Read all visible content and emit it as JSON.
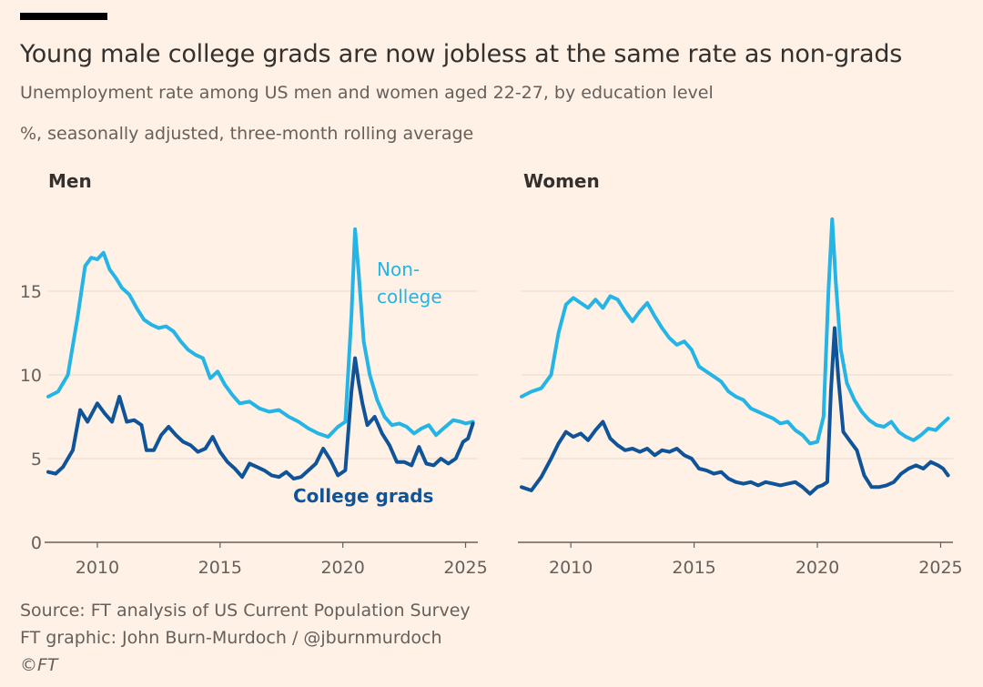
{
  "header": {
    "title": "Young male college grads are now jobless at the same rate as non-grads",
    "subtitle": "Unemployment rate among US men and women aged 22-27, by education level",
    "units": "%, seasonally adjusted, three-month rolling average"
  },
  "footer": {
    "source": "Source: FT analysis of US Current Population Survey",
    "credit": "FT graphic: John Burn-Murdoch / @jburnmurdoch",
    "copyright": "©FT"
  },
  "colors": {
    "background": "#fff1e5",
    "noncollege": "#25b4e6",
    "college": "#0f5499",
    "grid": "#e6d9ce",
    "axis": "#66605c",
    "text": "#33302e"
  },
  "chart_data": [
    {
      "type": "line",
      "title": "Men",
      "xlim": [
        2008,
        2025.5
      ],
      "ylim": [
        0,
        20
      ],
      "yticks": [
        0,
        5,
        10,
        15
      ],
      "xticks": [
        2010,
        2015,
        2020,
        2025
      ],
      "grid": true,
      "series": [
        {
          "name": "Non-college",
          "label_lines": [
            "Non-",
            "college"
          ],
          "color": "#25b4e6",
          "x": [
            2008.0,
            2008.4,
            2008.8,
            2009.2,
            2009.5,
            2009.75,
            2010.0,
            2010.25,
            2010.5,
            2010.75,
            2011.0,
            2011.3,
            2011.6,
            2011.9,
            2012.2,
            2012.5,
            2012.8,
            2013.1,
            2013.4,
            2013.7,
            2014.0,
            2014.3,
            2014.6,
            2014.9,
            2015.2,
            2015.5,
            2015.8,
            2016.2,
            2016.6,
            2017.0,
            2017.4,
            2017.8,
            2018.2,
            2018.6,
            2019.0,
            2019.4,
            2019.8,
            2020.1,
            2020.35,
            2020.5,
            2020.65,
            2020.85,
            2021.1,
            2021.4,
            2021.7,
            2022.0,
            2022.3,
            2022.6,
            2022.9,
            2023.2,
            2023.5,
            2023.8,
            2024.1,
            2024.5,
            2024.8,
            2025.0,
            2025.3
          ],
          "values": [
            8.7,
            9.0,
            10.0,
            13.5,
            16.5,
            17.0,
            16.9,
            17.3,
            16.3,
            15.8,
            15.2,
            14.8,
            14.0,
            13.3,
            13.0,
            12.8,
            12.9,
            12.6,
            12.0,
            11.5,
            11.2,
            11.0,
            9.8,
            10.2,
            9.4,
            8.8,
            8.3,
            8.4,
            8.0,
            7.8,
            7.9,
            7.5,
            7.2,
            6.8,
            6.5,
            6.3,
            6.9,
            7.2,
            13.5,
            18.7,
            16.0,
            12.0,
            10.0,
            8.5,
            7.5,
            7.0,
            7.1,
            6.9,
            6.5,
            6.8,
            7.0,
            6.4,
            6.8,
            7.3,
            7.2,
            7.1,
            7.2
          ]
        },
        {
          "name": "College grads",
          "color": "#0f5499",
          "x": [
            2008.0,
            2008.3,
            2008.6,
            2009.0,
            2009.3,
            2009.6,
            2010.0,
            2010.3,
            2010.6,
            2010.9,
            2011.2,
            2011.5,
            2011.8,
            2012.0,
            2012.3,
            2012.6,
            2012.9,
            2013.2,
            2013.5,
            2013.8,
            2014.1,
            2014.4,
            2014.7,
            2015.0,
            2015.3,
            2015.6,
            2015.9,
            2016.2,
            2016.5,
            2016.8,
            2017.1,
            2017.4,
            2017.7,
            2018.0,
            2018.3,
            2018.6,
            2018.9,
            2019.2,
            2019.5,
            2019.8,
            2020.1,
            2020.35,
            2020.5,
            2020.65,
            2020.8,
            2021.0,
            2021.3,
            2021.6,
            2021.9,
            2022.2,
            2022.5,
            2022.8,
            2023.1,
            2023.4,
            2023.7,
            2024.0,
            2024.3,
            2024.6,
            2024.9,
            2025.1,
            2025.3
          ],
          "values": [
            4.2,
            4.1,
            4.5,
            5.5,
            7.9,
            7.2,
            8.3,
            7.7,
            7.2,
            8.7,
            7.2,
            7.3,
            7.0,
            5.5,
            5.5,
            6.4,
            6.9,
            6.4,
            6.0,
            5.8,
            5.4,
            5.6,
            6.3,
            5.4,
            4.8,
            4.4,
            3.9,
            4.7,
            4.5,
            4.3,
            4.0,
            3.9,
            4.2,
            3.8,
            3.9,
            4.3,
            4.7,
            5.6,
            4.9,
            4.0,
            4.3,
            9.0,
            11.0,
            9.5,
            8.3,
            7.0,
            7.5,
            6.5,
            5.8,
            4.8,
            4.8,
            4.6,
            5.7,
            4.7,
            4.6,
            5.0,
            4.7,
            5.0,
            6.0,
            6.2,
            7.1
          ]
        }
      ]
    },
    {
      "type": "line",
      "title": "Women",
      "xlim": [
        2008,
        2025.5
      ],
      "ylim": [
        0,
        20
      ],
      "yticks": [
        0,
        5,
        10,
        15
      ],
      "xticks": [
        2010,
        2015,
        2020,
        2025
      ],
      "grid": true,
      "series": [
        {
          "name": "Non-college",
          "color": "#25b4e6",
          "x": [
            2008.0,
            2008.4,
            2008.8,
            2009.2,
            2009.5,
            2009.8,
            2010.1,
            2010.4,
            2010.7,
            2011.0,
            2011.3,
            2011.6,
            2011.9,
            2012.2,
            2012.5,
            2012.8,
            2013.1,
            2013.4,
            2013.7,
            2014.0,
            2014.3,
            2014.6,
            2014.9,
            2015.2,
            2015.5,
            2015.8,
            2016.1,
            2016.4,
            2016.7,
            2017.0,
            2017.3,
            2017.6,
            2017.9,
            2018.2,
            2018.5,
            2018.8,
            2019.1,
            2019.4,
            2019.7,
            2020.0,
            2020.25,
            2020.45,
            2020.6,
            2020.75,
            2020.95,
            2021.2,
            2021.5,
            2021.8,
            2022.1,
            2022.4,
            2022.7,
            2023.0,
            2023.3,
            2023.6,
            2023.9,
            2024.2,
            2024.5,
            2024.8,
            2025.0,
            2025.3
          ],
          "values": [
            8.7,
            9.0,
            9.2,
            10.0,
            12.5,
            14.2,
            14.6,
            14.3,
            14.0,
            14.5,
            14.0,
            14.7,
            14.5,
            13.8,
            13.2,
            13.8,
            14.3,
            13.5,
            12.8,
            12.2,
            11.8,
            12.0,
            11.5,
            10.5,
            10.2,
            9.9,
            9.6,
            9.0,
            8.7,
            8.5,
            8.0,
            7.8,
            7.6,
            7.4,
            7.1,
            7.2,
            6.7,
            6.4,
            5.9,
            6.0,
            7.5,
            15.0,
            19.3,
            15.5,
            11.5,
            9.5,
            8.5,
            7.8,
            7.3,
            7.0,
            6.9,
            7.2,
            6.6,
            6.3,
            6.1,
            6.4,
            6.8,
            6.7,
            7.0,
            7.4
          ]
        },
        {
          "name": "College grads",
          "color": "#0f5499",
          "x": [
            2008.0,
            2008.4,
            2008.8,
            2009.2,
            2009.5,
            2009.8,
            2010.1,
            2010.4,
            2010.7,
            2011.0,
            2011.3,
            2011.6,
            2011.9,
            2012.2,
            2012.5,
            2012.8,
            2013.1,
            2013.4,
            2013.7,
            2014.0,
            2014.3,
            2014.6,
            2014.9,
            2015.2,
            2015.5,
            2015.8,
            2016.1,
            2016.4,
            2016.7,
            2017.0,
            2017.3,
            2017.6,
            2017.9,
            2018.2,
            2018.5,
            2018.8,
            2019.1,
            2019.4,
            2019.7,
            2020.0,
            2020.2,
            2020.4,
            2020.55,
            2020.7,
            2020.85,
            2021.05,
            2021.3,
            2021.6,
            2021.9,
            2022.2,
            2022.5,
            2022.8,
            2023.1,
            2023.4,
            2023.7,
            2024.0,
            2024.3,
            2024.6,
            2024.9,
            2025.1,
            2025.3
          ],
          "values": [
            3.3,
            3.1,
            3.9,
            5.0,
            5.9,
            6.6,
            6.3,
            6.5,
            6.1,
            6.7,
            7.2,
            6.2,
            5.8,
            5.5,
            5.6,
            5.4,
            5.6,
            5.2,
            5.5,
            5.4,
            5.6,
            5.2,
            5.0,
            4.4,
            4.3,
            4.1,
            4.2,
            3.8,
            3.6,
            3.5,
            3.6,
            3.4,
            3.6,
            3.5,
            3.4,
            3.5,
            3.6,
            3.3,
            2.9,
            3.3,
            3.4,
            3.6,
            9.0,
            12.8,
            9.8,
            6.6,
            6.1,
            5.5,
            4.0,
            3.3,
            3.3,
            3.4,
            3.6,
            4.1,
            4.4,
            4.6,
            4.4,
            4.8,
            4.6,
            4.4,
            4.0
          ]
        }
      ]
    }
  ],
  "annotations": {
    "college_label": "College grads"
  }
}
